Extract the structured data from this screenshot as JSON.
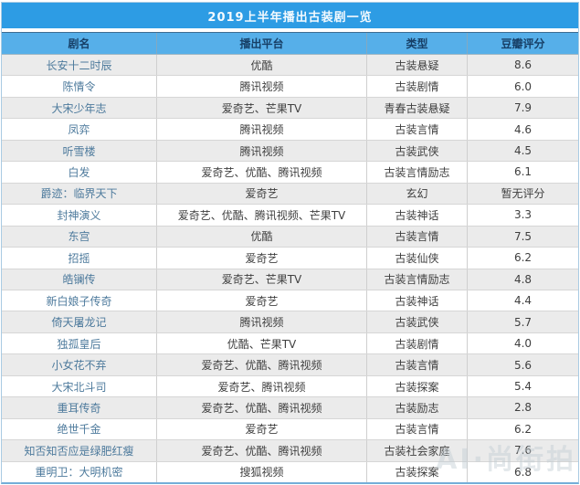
{
  "title": "2019上半年播出古装剧一览",
  "watermark": "AI·尚街拍",
  "colors": {
    "title_bar_bg": "#2d9ce4",
    "header_bg": "#56afe9",
    "header_text": "#173f66",
    "row_stripe_bg": "#ebebeb",
    "drama_name_text": "#4d7a9c",
    "cell_text": "#3f3f3f"
  },
  "chart_data": {
    "type": "table",
    "title": "2019上半年播出古装剧一览",
    "columns": [
      "剧名",
      "播出平台",
      "类型",
      "豆瓣评分"
    ],
    "rows": [
      [
        "长安十二时辰",
        "优酷",
        "古装悬疑",
        "8.6"
      ],
      [
        "陈情令",
        "腾讯视频",
        "古装剧情",
        "6.0"
      ],
      [
        "大宋少年志",
        "爱奇艺、芒果TV",
        "青春古装悬疑",
        "7.9"
      ],
      [
        "凤弈",
        "腾讯视频",
        "古装言情",
        "4.6"
      ],
      [
        "听雪楼",
        "腾讯视频",
        "古装武侠",
        "4.5"
      ],
      [
        "白发",
        "爱奇艺、优酷、腾讯视频",
        "古装言情励志",
        "6.1"
      ],
      [
        "爵迹：临界天下",
        "爱奇艺",
        "玄幻",
        "暂无评分"
      ],
      [
        "封神演义",
        "爱奇艺、优酷、腾讯视频、芒果TV",
        "古装神话",
        "3.3"
      ],
      [
        "东宫",
        "优酷",
        "古装言情",
        "7.5"
      ],
      [
        "招摇",
        "爱奇艺",
        "古装仙侠",
        "6.2"
      ],
      [
        "皓镧传",
        "爱奇艺、芒果TV",
        "古装言情励志",
        "4.8"
      ],
      [
        "新白娘子传奇",
        "爱奇艺",
        "古装神话",
        "4.4"
      ],
      [
        "倚天屠龙记",
        "腾讯视频",
        "古装武侠",
        "5.7"
      ],
      [
        "独孤皇后",
        "优酷、芒果TV",
        "古装剧情",
        "4.0"
      ],
      [
        "小女花不弃",
        "爱奇艺、优酷、腾讯视频",
        "古装言情",
        "5.6"
      ],
      [
        "大宋北斗司",
        "爱奇艺、腾讯视频",
        "古装探案",
        "5.4"
      ],
      [
        "重耳传奇",
        "爱奇艺、优酷、腾讯视频",
        "古装励志",
        "2.8"
      ],
      [
        "绝世千金",
        "爱奇艺",
        "古装言情",
        "6.2"
      ],
      [
        "知否知否应是绿肥红瘦",
        "爱奇艺、优酷、腾讯视频",
        "古装社会家庭",
        "7.6"
      ],
      [
        "重明卫：大明机密",
        "搜狐视频",
        "古装探案",
        "6.8"
      ]
    ]
  }
}
